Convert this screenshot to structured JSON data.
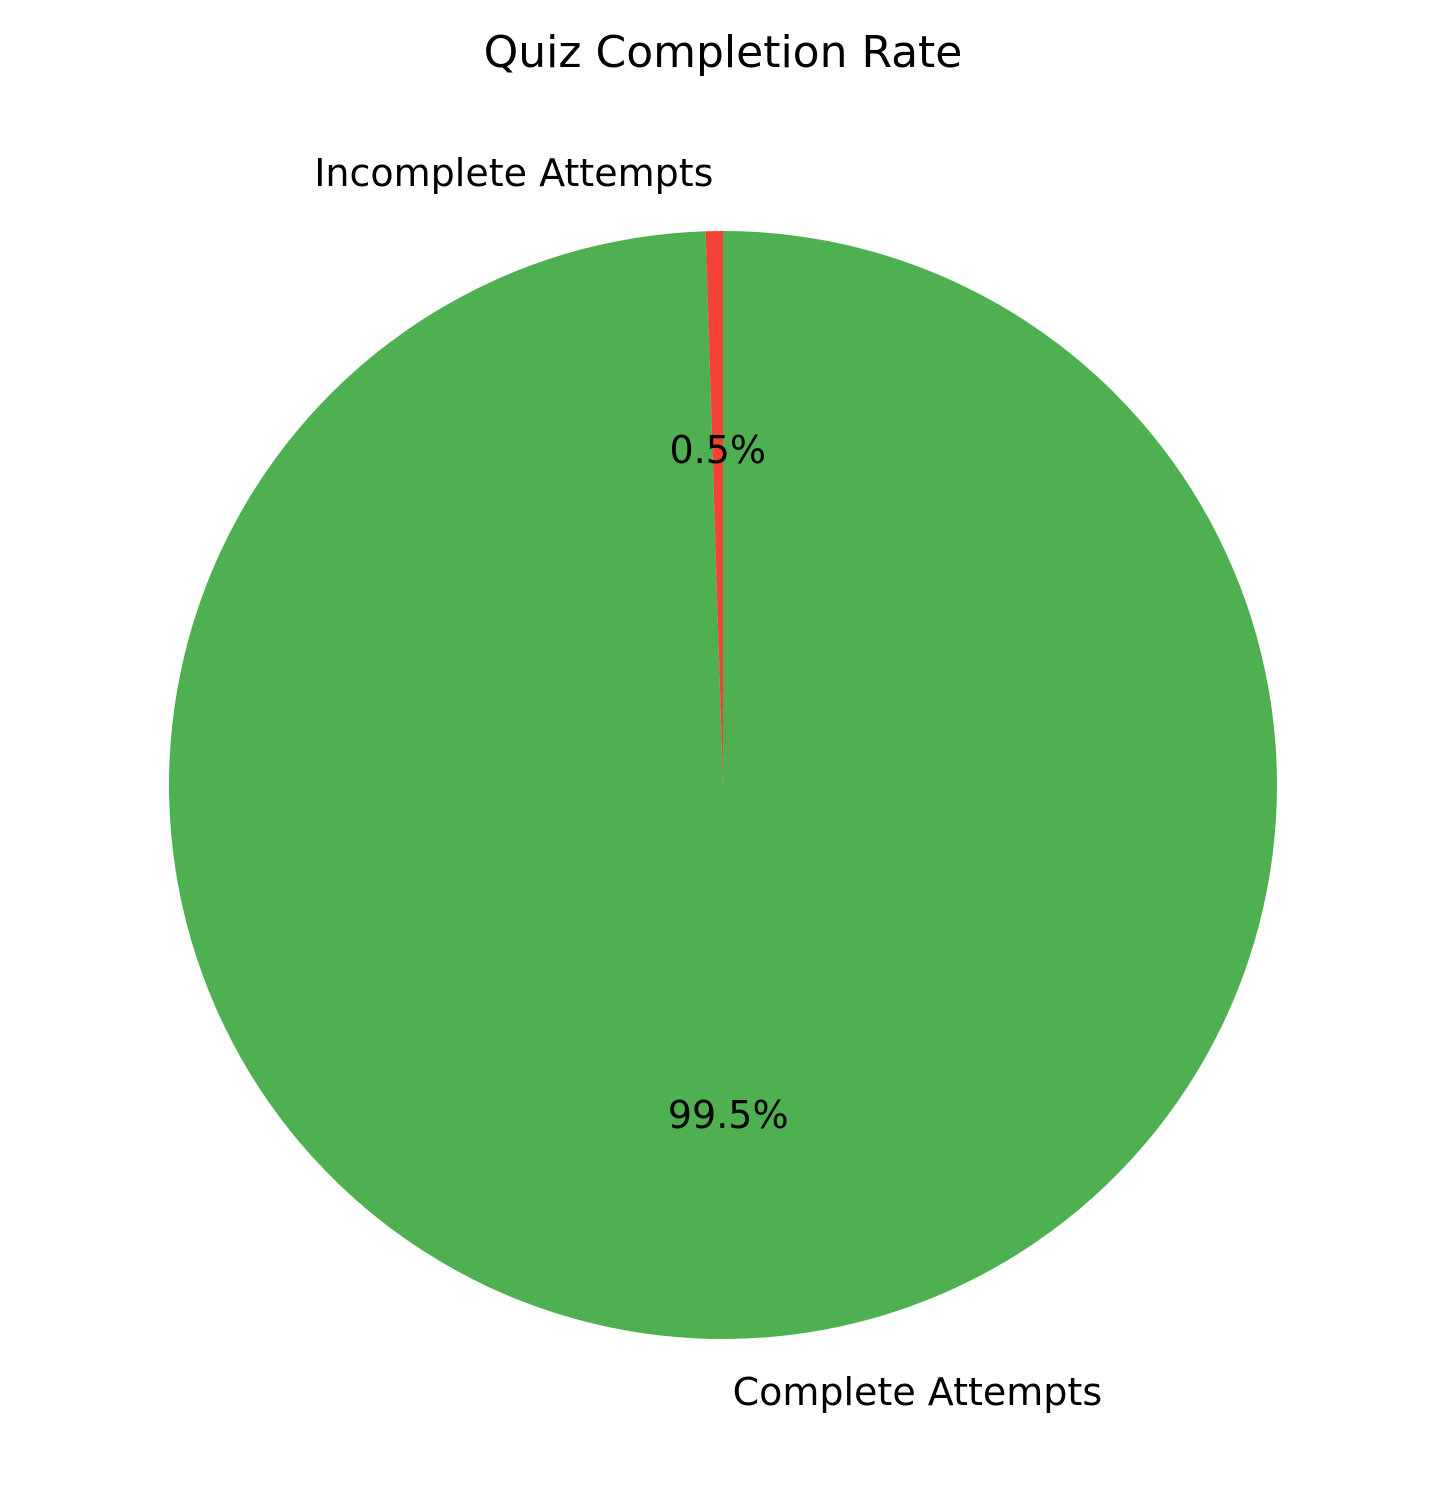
{
  "chart_data": {
    "type": "pie",
    "title": "Quiz Completion Rate",
    "slices": [
      {
        "label": "Complete Attempts",
        "value": 99.5,
        "value_label": "99.5%",
        "color": "#4eb050"
      },
      {
        "label": "Incomplete Attempts",
        "value": 0.5,
        "value_label": "0.5%",
        "color": "#f44336"
      }
    ]
  }
}
